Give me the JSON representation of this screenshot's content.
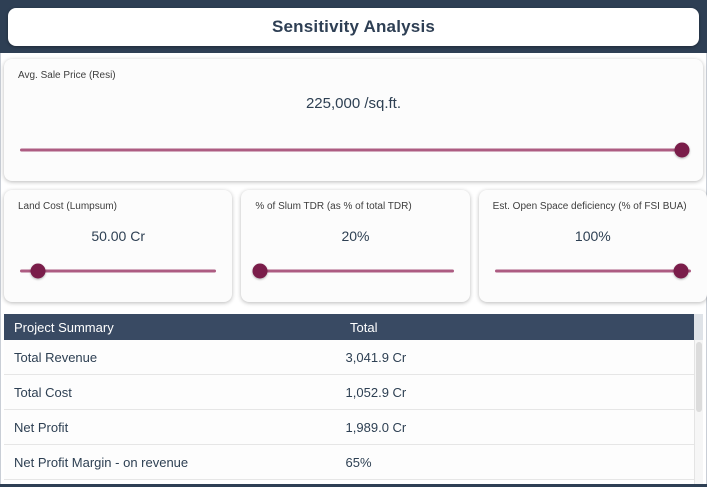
{
  "header": {
    "title": "Sensitivity Analysis"
  },
  "main_slider": {
    "label": "Avg. Sale Price (Resi)",
    "value": "225,000 /sq.ft.",
    "percent": 99.3
  },
  "mini_sliders": [
    {
      "label": "Land Cost (Lumpsum)",
      "value": "50.00 Cr",
      "percent": 9
    },
    {
      "label": "% of Slum TDR (as % of total TDR)",
      "value": "20%",
      "percent": 1.5
    },
    {
      "label": "Est. Open Space deficiency (% of FSI BUA)",
      "value": "100%",
      "percent": 95
    }
  ],
  "table": {
    "col1_header": "Project Summary",
    "col2_header": "Total",
    "rows": [
      {
        "label": "Total Revenue",
        "value": "3,041.9 Cr"
      },
      {
        "label": "Total Cost",
        "value": "1,052.9 Cr"
      },
      {
        "label": "Net Profit",
        "value": "1,989.0 Cr"
      },
      {
        "label": "Net Profit Margin - on revenue",
        "value": "65%"
      }
    ]
  },
  "colors": {
    "navy": "#2e3f54",
    "table_header_navy": "#394a63",
    "slider_handle": "#7a1d4a",
    "slider_track": "#ad5c82"
  }
}
